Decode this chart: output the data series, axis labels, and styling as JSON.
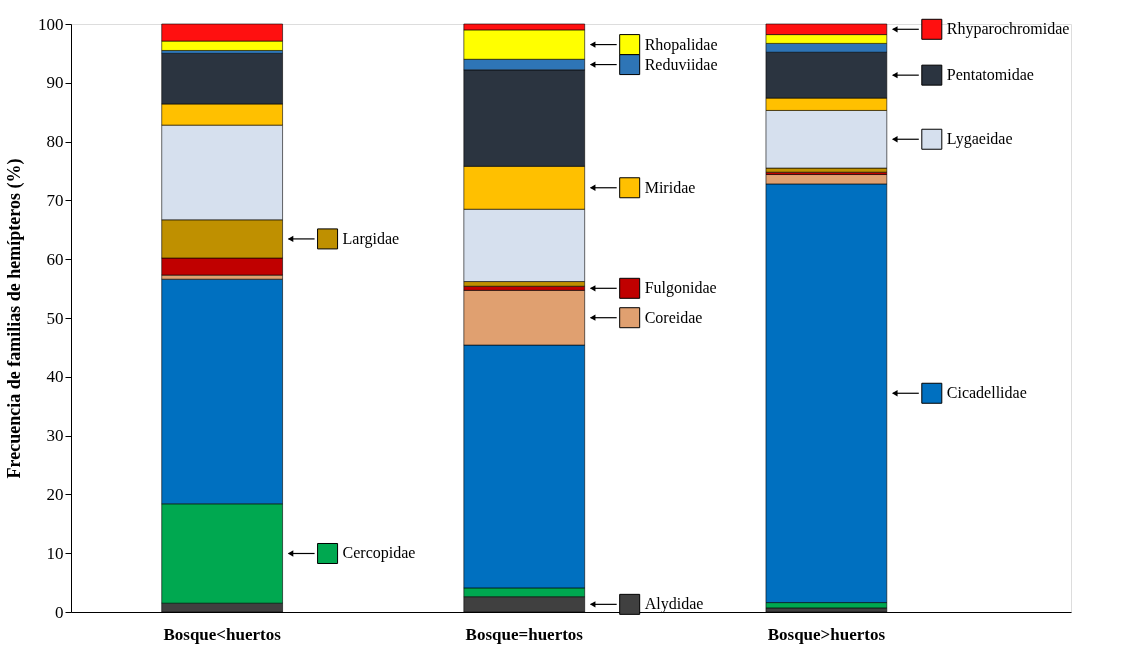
{
  "chart_data": {
    "type": "bar",
    "stacked": true,
    "legend": "right",
    "ylabel": "Frecuencia de familias de hemípteros (%)",
    "categories": [
      "Bosque<huertos",
      "Bosque=huertos",
      "Bosque>huertos"
    ],
    "ylim": [
      0,
      100
    ],
    "yticks": [
      0,
      10,
      20,
      30,
      40,
      50,
      60,
      70,
      80,
      90,
      100
    ],
    "series": [
      {
        "name": "Alydidae",
        "color": "#404040",
        "values": [
          1.5,
          2.6,
          0.7
        ]
      },
      {
        "name": "Cercopidae",
        "color": "#00a850",
        "values": [
          16.9,
          1.5,
          0.9
        ]
      },
      {
        "name": "Cicadellidae",
        "color": "#0070c0",
        "values": [
          38.2,
          41.3,
          71.2
        ]
      },
      {
        "name": "Coreidae",
        "color": "#e0a070",
        "values": [
          0.7,
          9.3,
          1.6
        ]
      },
      {
        "name": "Fulgonidae",
        "color": "#c00000",
        "values": [
          2.9,
          0.7,
          0.4
        ]
      },
      {
        "name": "Largidae",
        "color": "#bf9000",
        "values": [
          6.5,
          0.8,
          0.7
        ]
      },
      {
        "name": "Lygaeidae",
        "color": "#d6e0ee",
        "values": [
          16.1,
          12.3,
          9.8
        ]
      },
      {
        "name": "Miridae",
        "color": "#ffc000",
        "values": [
          3.6,
          7.3,
          2.1
        ]
      },
      {
        "name": "Pentatomidae",
        "color": "#2b3440",
        "values": [
          8.6,
          16.4,
          7.8
        ]
      },
      {
        "name": "Reduviidae",
        "color": "#2e75b6",
        "values": [
          0.5,
          1.8,
          1.5
        ]
      },
      {
        "name": "Rhopalidae",
        "color": "#ffff00",
        "values": [
          1.6,
          5.0,
          1.5
        ]
      },
      {
        "name": "Rhyparochromidae",
        "color": "#ff1010",
        "values": [
          2.9,
          1.0,
          1.8
        ]
      }
    ]
  }
}
